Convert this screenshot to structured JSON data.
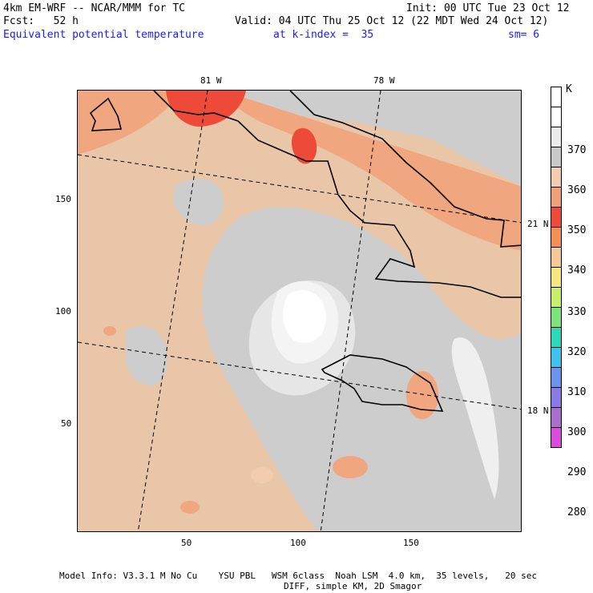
{
  "header": {
    "title_left": "4km EM-WRF -- NCAR/MMM for TC",
    "fcst": "Fcst:   52 h",
    "init": "Init: 00 UTC Tue 23 Oct 12",
    "valid": "Valid: 04 UTC Thu 25 Oct 12 (22 MDT Wed 24 Oct 12)",
    "field": "Equivalent potential temperature",
    "kindex": "at k-index =  35",
    "sm": "sm= 6"
  },
  "map": {
    "lon_labels": [
      "81 W",
      "78 W"
    ],
    "lat_labels": [
      "21 N",
      "18 N"
    ],
    "y_ticks": [
      "150",
      "100",
      "50"
    ],
    "x_ticks": [
      "50",
      "100",
      "150"
    ]
  },
  "colorbar": {
    "unit": "K",
    "labels": [
      "370",
      "360",
      "350",
      "340",
      "330",
      "320",
      "310",
      "300",
      "290",
      "280"
    ],
    "colors": [
      "#ffffff",
      "#ffffff",
      "#ececec",
      "#c8c8c8",
      "#f2ccaf",
      "#f0a078",
      "#ee4a3a",
      "#f28e58",
      "#f4c898",
      "#f6e682",
      "#c8ee6a",
      "#7ee27e",
      "#2ed8b8",
      "#3ec4ec",
      "#6a94ee",
      "#8a7ae4",
      "#a870cc",
      "#d84ed8"
    ]
  },
  "footer": {
    "line1": "Model Info: V3.3.1 M No Cu    YSU PBL   WSM 6class  Noah LSM  4.0 km,  35 levels,   20 sec",
    "line2": "DIFF, simple KM, 2D Smagor"
  }
}
